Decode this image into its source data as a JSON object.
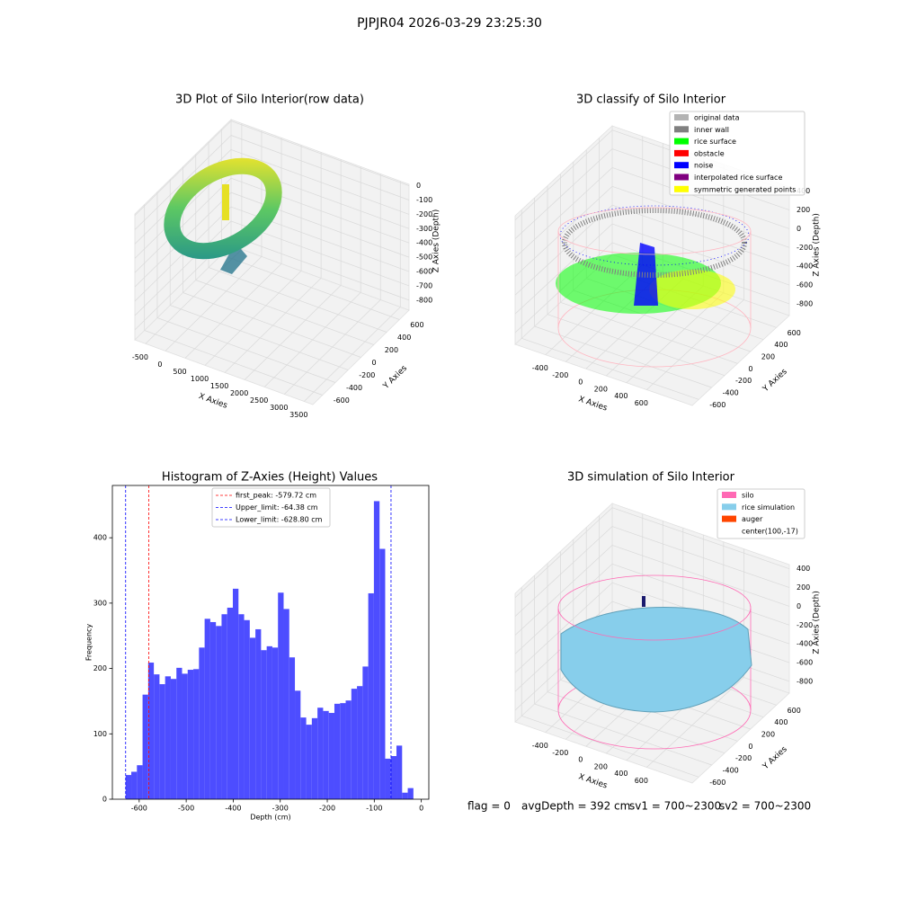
{
  "title": "PJPJR04 2026-03-29 23:25:30",
  "footer": [
    "flag = 0",
    "avgDepth = 392 cm",
    "sv1 = 700~2300",
    "sv2 = 700~2300"
  ],
  "chart_data": [
    {
      "type": "scatter3d",
      "title": "3D Plot of Silo Interior(row data)",
      "xlabel": "X Axies",
      "ylabel": "Y Axies",
      "zlabel": "Z Axies (Depth)",
      "xlim": [
        -770,
        3720
      ],
      "ylim": [
        -750,
        750
      ],
      "zlim": [
        -870,
        10
      ],
      "xticks": [
        -500,
        0,
        500,
        1000,
        1500,
        2000,
        2500,
        3000,
        3500
      ],
      "yticks": [
        -600,
        -400,
        -200,
        0,
        200,
        400,
        600
      ],
      "zticks": [
        0,
        -100,
        -200,
        -300,
        -400,
        -500,
        -600,
        -700,
        -800
      ],
      "grid": true
    },
    {
      "type": "scatter3d",
      "title": "3D classify of Silo Interior",
      "xlabel": "X Axies",
      "ylabel": "Y Axies",
      "zlabel": "Z Axies (Depth)",
      "xlim": [
        -700,
        1050
      ],
      "ylim": [
        -700,
        800
      ],
      "zlim": [
        -925,
        445
      ],
      "xticks": [
        -400,
        -200,
        0,
        200,
        400,
        600
      ],
      "yticks": [
        -600,
        -400,
        -200,
        0,
        200,
        400,
        600
      ],
      "zticks": [
        -800,
        -600,
        -400,
        -200,
        0,
        200,
        400
      ],
      "grid": true,
      "legend_loc": "upper right",
      "legend": [
        {
          "name": "original data",
          "color": "#b3b3b3"
        },
        {
          "name": "inner wall",
          "color": "#808080"
        },
        {
          "name": "rice surface",
          "color": "#00ff00"
        },
        {
          "name": "obstacle",
          "color": "#ff0000"
        },
        {
          "name": "noise",
          "color": "#0000ff"
        },
        {
          "name": "interpolated rice surface",
          "color": "#800080"
        },
        {
          "name": "symmetric generated points",
          "color": "#ffff00"
        }
      ]
    },
    {
      "type": "histogram",
      "title": "Histogram of Z-Axies (Height) Values",
      "xlabel": "Depth (cm)",
      "ylabel": "Frequency",
      "color": "#4d4dff",
      "bins": [
        -628.8,
        -616.8,
        -604.8,
        -592.8,
        -580.8,
        -568.8,
        -556.8,
        -544.8,
        -532.8,
        -520.8,
        -508.8,
        -496.8,
        -484.8,
        -472.8,
        -460.8,
        -448.8,
        -436.8,
        -424.8,
        -412.8,
        -400.8,
        -388.8,
        -376.8,
        -364.8,
        -352.8,
        -340.8,
        -328.8,
        -316.8,
        -304.8,
        -292.8,
        -280.8,
        -268.8,
        -256.8,
        -244.8,
        -232.8,
        -220.8,
        -208.8,
        -196.8,
        -184.8,
        -172.8,
        -160.8,
        -148.8,
        -136.8,
        -124.8,
        -112.8,
        -100.8,
        -88.8,
        -76.8,
        -64.8,
        -52.8,
        -40.8,
        -28.8,
        -16.8
      ],
      "values": [
        37,
        42,
        52,
        160,
        209,
        191,
        176,
        188,
        184,
        201,
        192,
        198,
        199,
        232,
        276,
        271,
        265,
        283,
        293,
        322,
        283,
        274,
        247,
        260,
        228,
        234,
        232,
        316,
        291,
        217,
        166,
        125,
        114,
        124,
        140,
        135,
        132,
        146,
        147,
        151,
        169,
        173,
        203,
        315,
        456,
        383,
        62,
        66,
        82,
        10,
        17
      ],
      "xlim": [
        -657,
        16
      ],
      "ylim": [
        0,
        480
      ],
      "xticks": [
        -600,
        -500,
        -400,
        -300,
        -200,
        -100,
        0
      ],
      "yticks": [
        0,
        100,
        200,
        300,
        400
      ],
      "legend_loc": "upper center",
      "lines": [
        {
          "name": "first_peak: -579.72 cm",
          "value": -579.72,
          "color": "#ff0000"
        },
        {
          "name": "Upper_limit: -64.38 cm",
          "value": -64.38,
          "color": "#0000ff"
        },
        {
          "name": "Lower_limit: -628.80 cm",
          "value": -628.8,
          "color": "#0000ff"
        }
      ]
    },
    {
      "type": "scatter3d",
      "title": "3D simulation of Silo Interior",
      "xlabel": "X Axies",
      "ylabel": "Y Axies",
      "zlabel": "Z Axies (Depth)",
      "xlim": [
        -700,
        1050
      ],
      "ylim": [
        -700,
        800
      ],
      "zlim": [
        -925,
        445
      ],
      "xticks": [
        -400,
        -200,
        0,
        200,
        400,
        600
      ],
      "yticks": [
        -600,
        -400,
        -200,
        0,
        200,
        400,
        600
      ],
      "zticks": [
        -800,
        -600,
        -400,
        -200,
        0,
        200,
        400
      ],
      "grid": true,
      "legend_loc": "upper right",
      "legend": [
        {
          "name": "silo",
          "color": "#ff69b4"
        },
        {
          "name": "rice simulation",
          "color": "#87ceeb"
        },
        {
          "name": "auger",
          "color": "#ff4500"
        },
        {
          "name": "center(100,-17)"
        }
      ]
    }
  ]
}
